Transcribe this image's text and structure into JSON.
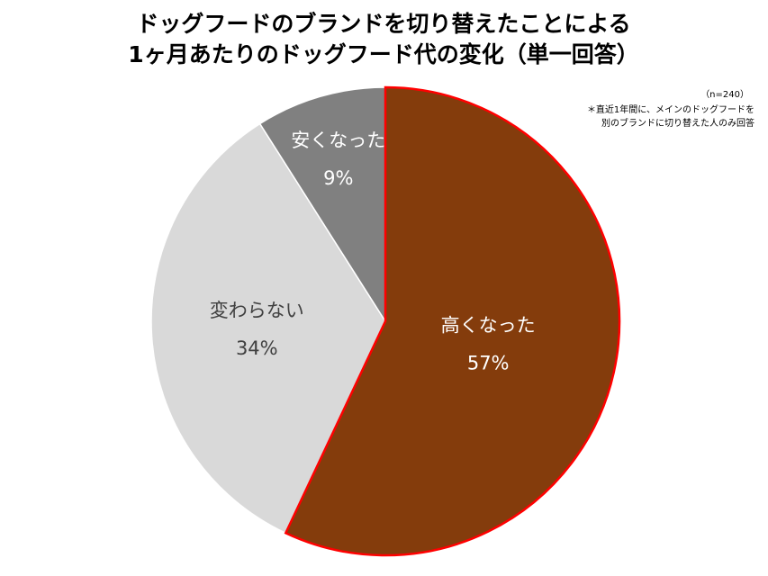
{
  "chart_data": {
    "type": "pie",
    "title": [
      "ドッグフードのブランドを切り替えたことによる",
      "1ヶ月あたりのドッグフード代の変化（単一回答）"
    ],
    "annotations": [
      "（n=240）",
      "＊直近1年間に、メインのドッグフードを",
      "別のブランドに切り替えた人のみ回答"
    ],
    "categories": [
      "高くなった",
      "変わらない",
      "安くなった"
    ],
    "values": [
      57,
      34,
      9
    ],
    "value_labels": [
      "57%",
      "34%",
      "9%"
    ],
    "colors": [
      "#843C0C",
      "#D9D9D9",
      "#808080"
    ],
    "edgecolors": [
      "#FF0000",
      "#FFFFFF",
      "#FFFFFF"
    ],
    "label_colors": [
      "#FFFFFF",
      "#404040",
      "#FFFFFF"
    ]
  }
}
